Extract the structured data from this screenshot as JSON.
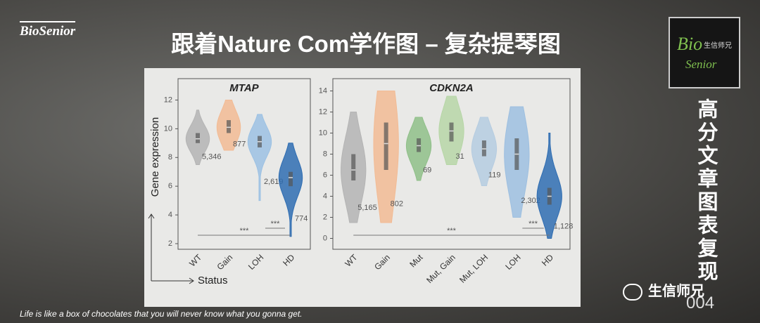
{
  "header": {
    "brand": "BioSenior",
    "title": "跟着Nature Com学作图 – 复杂提琴图"
  },
  "logo": {
    "bio": "Bio",
    "name": "生信师兄",
    "senior": "Senior"
  },
  "side": {
    "series": "高分文章图表复现",
    "number": "004"
  },
  "footer": {
    "quote": "Life is like a box of chocolates that you will never know what you gonna get.",
    "wechat": "生信师兄"
  },
  "chart_data": [
    {
      "type": "violin",
      "title": "MTAP",
      "ylabel": "Gene expression",
      "xlabel": "Status",
      "categories": [
        "WT",
        "Gain",
        "LOH",
        "HD"
      ],
      "colors": [
        "#b4b4b4",
        "#f2bb94",
        "#9cc1e3",
        "#2f6db2"
      ],
      "low": [
        7.5,
        8.5,
        5.0,
        2.5
      ],
      "q1": [
        9.0,
        9.7,
        8.7,
        6.0
      ],
      "median": [
        9.3,
        10.1,
        9.1,
        6.6
      ],
      "q3": [
        9.7,
        10.6,
        9.5,
        7.0
      ],
      "high": [
        11.3,
        12.0,
        11.0,
        9.0
      ],
      "n_labels": [
        "5,346",
        "877",
        "2,619",
        "774"
      ],
      "annotations": [
        "***",
        "***"
      ],
      "ylim": [
        2,
        13
      ],
      "yticks": [
        2,
        4,
        6,
        8,
        10,
        12
      ]
    },
    {
      "type": "violin",
      "title": "CDKN2A",
      "categories": [
        "WT",
        "Gain",
        "Mut",
        "Mut, Gain",
        "Mut, LOH",
        "LOH",
        "HD"
      ],
      "colors": [
        "#b4b4b4",
        "#f2bb94",
        "#8fbf88",
        "#b7d6a7",
        "#b5cce0",
        "#9dbfe0",
        "#2f6db2"
      ],
      "low": [
        1.5,
        1.5,
        5.5,
        7.0,
        5.0,
        2.0,
        0.0
      ],
      "q1": [
        5.5,
        6.5,
        8.2,
        9.2,
        7.8,
        6.5,
        3.2
      ],
      "median": [
        6.5,
        9.0,
        8.8,
        10.2,
        8.5,
        8.0,
        4.0
      ],
      "q3": [
        8.0,
        11.0,
        9.5,
        11.0,
        9.3,
        9.5,
        4.8
      ],
      "high": [
        12.0,
        14.0,
        11.5,
        13.5,
        11.5,
        12.5,
        10.0
      ],
      "n_labels": [
        "5,165",
        "802",
        "69",
        "31",
        "119",
        "2,302",
        "1,128"
      ],
      "annotations": [
        "***",
        "***"
      ],
      "ylim": [
        -0.5,
        14.5
      ],
      "yticks": [
        0,
        2,
        4,
        6,
        8,
        10,
        12,
        14
      ]
    }
  ]
}
